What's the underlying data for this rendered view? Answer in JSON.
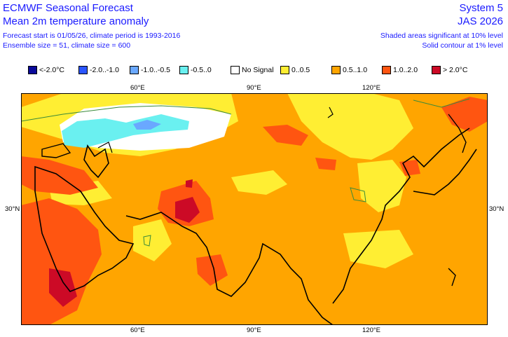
{
  "header": {
    "title": "ECMWF Seasonal Forecast",
    "subtitle": "Mean 2m temperature anomaly",
    "forecast_info": "Forecast start is 01/05/26, climate period is 1993-2016",
    "ensemble_info": "Ensemble size = 51, climate size = 600",
    "system": "System 5",
    "season": "JAS 2026",
    "significance_note": "Shaded areas significant at 10% level",
    "contour_note": "Solid contour at 1% level"
  },
  "legend": [
    {
      "label": "<-2.0°C",
      "color": "#0a0a9a"
    },
    {
      "label": "-2.0..-1.0",
      "color": "#2a55ff"
    },
    {
      "label": "-1.0..-0.5",
      "color": "#6aa8ff"
    },
    {
      "label": "-0.5..0",
      "color": "#6af0f0"
    },
    {
      "label": "No Signal",
      "color": "#ffffff"
    },
    {
      "label": "0..0.5",
      "color": "#ffee33"
    },
    {
      "label": "0.5..1.0",
      "color": "#ffa500"
    },
    {
      "label": "1.0..2.0",
      "color": "#ff5511"
    },
    {
      "label": "> 2.0°C",
      "color": "#cc0a26"
    }
  ],
  "axes": {
    "top_lon": [
      "60°E",
      "90°E",
      "120°E"
    ],
    "bottom_lon": [
      "60°E",
      "90°E",
      "120°E"
    ],
    "left_lat": "30°N",
    "right_lat": "30°N"
  },
  "chart_data": {
    "type": "heatmap",
    "variable": "Mean 2m temperature anomaly",
    "unit": "°C",
    "lon_range": [
      45,
      150
    ],
    "lat_range": [
      5,
      55
    ],
    "dominant_category": "0.5..1.0",
    "cold_anomaly_region": "Kazakhstan / northern Caspian, -0.5..0 with small -1.0..-0.5 patch",
    "no_signal_region": "Central Asia north of ~45°N",
    "warm_hotspots": [
      "Arabian Peninsula",
      "Iran / Afghanistan (>2.0°C)",
      "Mongolia",
      "Japan / Kamchatka"
    ]
  }
}
